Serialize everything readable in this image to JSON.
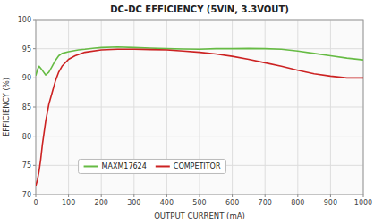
{
  "chart_data": {
    "type": "line",
    "title": "DC-DC EFFICIENCY (5VIN, 3.3VOUT)",
    "x_label": "OUTPUT CURRENT (mA)",
    "y_label": "EFFICIENCY (%)",
    "xlim": [
      0,
      1000
    ],
    "ylim": [
      70,
      100
    ],
    "xticks": [
      0,
      100,
      200,
      300,
      400,
      500,
      600,
      700,
      800,
      900,
      1000
    ],
    "yticks": [
      70,
      75,
      80,
      85,
      90,
      95,
      100
    ],
    "grid": true,
    "legend": "lower left",
    "series": [
      {
        "name": "MAXM17624",
        "color": "#66bb44",
        "x": [
          0,
          5,
          10,
          20,
          30,
          40,
          50,
          60,
          70,
          80,
          100,
          130,
          150,
          180,
          200,
          250,
          300,
          350,
          400,
          450,
          500,
          550,
          600,
          650,
          700,
          750,
          800,
          850,
          900,
          950,
          1000
        ],
        "values": [
          90.4,
          91.4,
          92.0,
          91.3,
          90.5,
          91.0,
          92.0,
          93.0,
          93.8,
          94.2,
          94.5,
          94.8,
          94.9,
          95.1,
          95.2,
          95.3,
          95.2,
          95.1,
          95.0,
          94.95,
          94.9,
          95.0,
          95.0,
          95.05,
          95.0,
          94.9,
          94.6,
          94.2,
          93.8,
          93.4,
          93.1
        ]
      },
      {
        "name": "COMPETITOR",
        "color": "#cc2222",
        "x": [
          0,
          5,
          10,
          15,
          20,
          25,
          30,
          40,
          50,
          60,
          70,
          80,
          100,
          120,
          150,
          200,
          250,
          300,
          350,
          400,
          450,
          500,
          550,
          600,
          650,
          700,
          750,
          800,
          850,
          900,
          950,
          1000
        ],
        "values": [
          71.5,
          72.5,
          74.0,
          76.0,
          78.5,
          80.5,
          82.5,
          85.5,
          87.5,
          89.5,
          91.0,
          92.0,
          93.2,
          93.8,
          94.4,
          94.8,
          94.9,
          94.9,
          94.85,
          94.8,
          94.6,
          94.4,
          94.1,
          93.7,
          93.2,
          92.6,
          92.0,
          91.3,
          90.7,
          90.3,
          90.0,
          90.0
        ]
      }
    ]
  }
}
